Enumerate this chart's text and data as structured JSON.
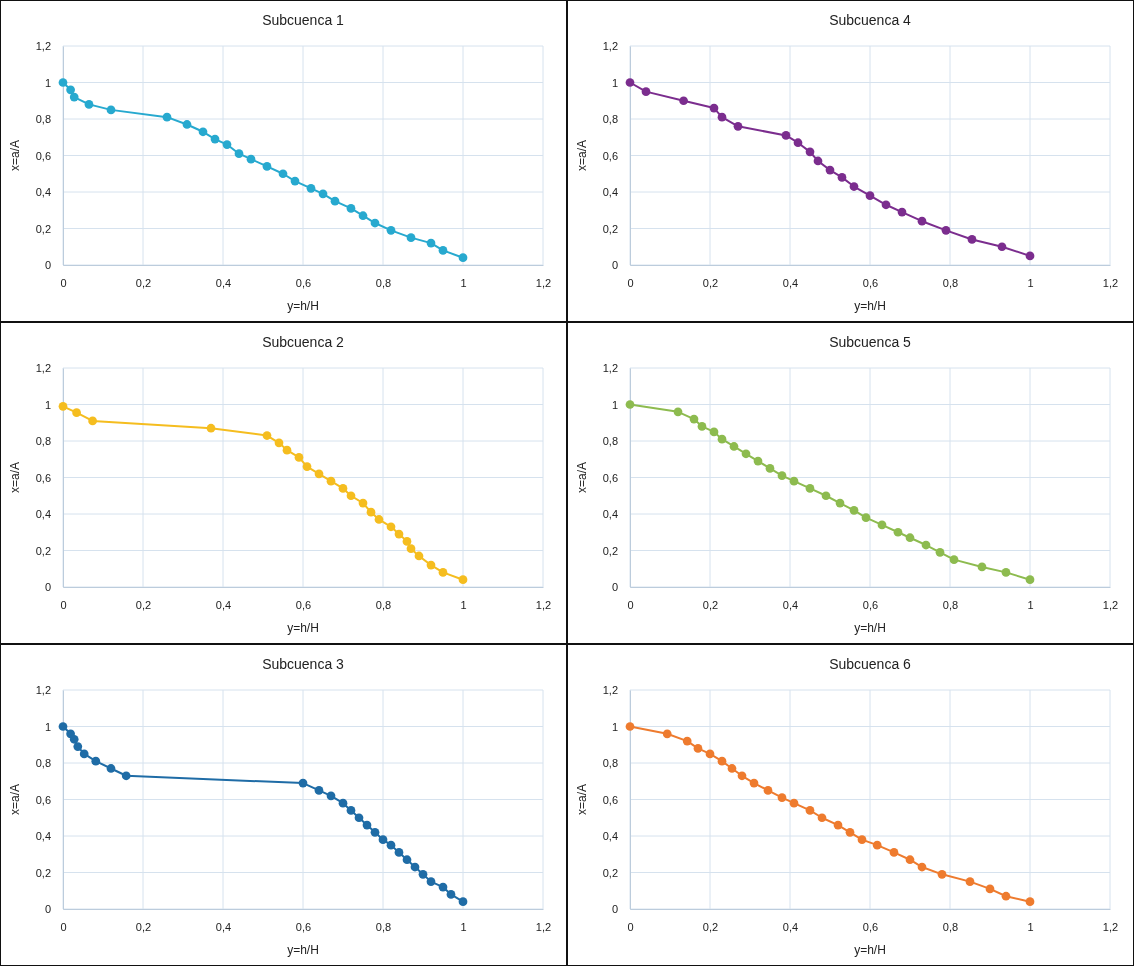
{
  "chart_data": [
    {
      "type": "line",
      "title": "Subcuenca 1",
      "xlabel": "y=h/H",
      "ylabel": "x=a/A",
      "color": "#27a9cf",
      "marker": "circle",
      "grid": true,
      "x": [
        0,
        0.019,
        0.028,
        0.065,
        0.12,
        0.26,
        0.31,
        0.35,
        0.38,
        0.41,
        0.44,
        0.47,
        0.51,
        0.55,
        0.58,
        0.62,
        0.65,
        0.68,
        0.72,
        0.75,
        0.78,
        0.82,
        0.87,
        0.92,
        0.95,
        1.0
      ],
      "values": [
        1.0,
        0.96,
        0.92,
        0.88,
        0.85,
        0.81,
        0.77,
        0.73,
        0.69,
        0.66,
        0.61,
        0.58,
        0.54,
        0.5,
        0.46,
        0.42,
        0.39,
        0.35,
        0.31,
        0.27,
        0.23,
        0.19,
        0.15,
        0.12,
        0.08,
        0.04
      ],
      "xlim": [
        0,
        1.2
      ],
      "ylim": [
        0,
        1.2
      ],
      "xticks": [
        {
          "value": 0,
          "label": "0"
        },
        {
          "value": 0.2,
          "label": "0,2"
        },
        {
          "value": 0.4,
          "label": "0,4"
        },
        {
          "value": 0.6,
          "label": "0,6"
        },
        {
          "value": 0.8,
          "label": "0,8"
        },
        {
          "value": 1,
          "label": "1"
        },
        {
          "value": 1.2,
          "label": "1,2"
        }
      ],
      "yticks": [
        {
          "value": 0,
          "label": "0"
        },
        {
          "value": 0.2,
          "label": "0,2"
        },
        {
          "value": 0.4,
          "label": "0,4"
        },
        {
          "value": 0.6,
          "label": "0,6"
        },
        {
          "value": 0.8,
          "label": "0,8"
        },
        {
          "value": 1,
          "label": "1"
        },
        {
          "value": 1.2,
          "label": "1,2"
        }
      ]
    },
    {
      "type": "line",
      "title": "Subcuenca 4",
      "xlabel": "y=h/H",
      "ylabel": "x=a/A",
      "color": "#7b2d8e",
      "marker": "circle",
      "grid": true,
      "x": [
        0,
        0.04,
        0.134,
        0.21,
        0.23,
        0.27,
        0.39,
        0.42,
        0.45,
        0.47,
        0.5,
        0.53,
        0.56,
        0.6,
        0.64,
        0.68,
        0.73,
        0.79,
        0.855,
        0.93,
        1.0
      ],
      "values": [
        1.0,
        0.95,
        0.9,
        0.86,
        0.81,
        0.76,
        0.71,
        0.67,
        0.62,
        0.57,
        0.52,
        0.48,
        0.43,
        0.38,
        0.33,
        0.29,
        0.24,
        0.19,
        0.14,
        0.1,
        0.05
      ],
      "xlim": [
        0,
        1.2
      ],
      "ylim": [
        0,
        1.2
      ],
      "xticks": [
        {
          "value": 0,
          "label": "0"
        },
        {
          "value": 0.2,
          "label": "0,2"
        },
        {
          "value": 0.4,
          "label": "0,4"
        },
        {
          "value": 0.6,
          "label": "0,6"
        },
        {
          "value": 0.8,
          "label": "0,8"
        },
        {
          "value": 1,
          "label": "1"
        },
        {
          "value": 1.2,
          "label": "1,2"
        }
      ],
      "yticks": [
        {
          "value": 0,
          "label": "0"
        },
        {
          "value": 0.2,
          "label": "0,2"
        },
        {
          "value": 0.4,
          "label": "0,4"
        },
        {
          "value": 0.6,
          "label": "0,6"
        },
        {
          "value": 0.8,
          "label": "0,8"
        },
        {
          "value": 1,
          "label": "1"
        },
        {
          "value": 1.2,
          "label": "1,2"
        }
      ]
    },
    {
      "type": "line",
      "title": "Subcuenca 2",
      "xlabel": "y=h/H",
      "ylabel": "x=a/A",
      "color": "#f5bd1f",
      "marker": "circle",
      "grid": true,
      "x": [
        0,
        0.034,
        0.074,
        0.37,
        0.51,
        0.54,
        0.56,
        0.59,
        0.61,
        0.64,
        0.67,
        0.7,
        0.72,
        0.75,
        0.77,
        0.79,
        0.82,
        0.84,
        0.86,
        0.87,
        0.89,
        0.92,
        0.95,
        1.0
      ],
      "values": [
        0.99,
        0.955,
        0.91,
        0.87,
        0.83,
        0.79,
        0.75,
        0.71,
        0.66,
        0.62,
        0.58,
        0.54,
        0.5,
        0.46,
        0.41,
        0.37,
        0.33,
        0.29,
        0.25,
        0.21,
        0.17,
        0.12,
        0.08,
        0.04
      ],
      "xlim": [
        0,
        1.2
      ],
      "ylim": [
        0,
        1.2
      ],
      "xticks": [
        {
          "value": 0,
          "label": "0"
        },
        {
          "value": 0.2,
          "label": "0,2"
        },
        {
          "value": 0.4,
          "label": "0,4"
        },
        {
          "value": 0.6,
          "label": "0,6"
        },
        {
          "value": 0.8,
          "label": "0,8"
        },
        {
          "value": 1,
          "label": "1"
        },
        {
          "value": 1.2,
          "label": "1,2"
        }
      ],
      "yticks": [
        {
          "value": 0,
          "label": "0"
        },
        {
          "value": 0.2,
          "label": "0,2"
        },
        {
          "value": 0.4,
          "label": "0,4"
        },
        {
          "value": 0.6,
          "label": "0,6"
        },
        {
          "value": 0.8,
          "label": "0,8"
        },
        {
          "value": 1,
          "label": "1"
        },
        {
          "value": 1.2,
          "label": "1,2"
        }
      ]
    },
    {
      "type": "line",
      "title": "Subcuenca 5",
      "xlabel": "y=h/H",
      "ylabel": "x=a/A",
      "color": "#8dbb4f",
      "marker": "circle",
      "grid": true,
      "x": [
        0,
        0.12,
        0.16,
        0.18,
        0.21,
        0.23,
        0.26,
        0.29,
        0.32,
        0.35,
        0.38,
        0.41,
        0.45,
        0.49,
        0.525,
        0.56,
        0.59,
        0.63,
        0.67,
        0.7,
        0.74,
        0.775,
        0.81,
        0.88,
        0.94,
        1.0
      ],
      "values": [
        1.0,
        0.96,
        0.92,
        0.88,
        0.85,
        0.81,
        0.77,
        0.73,
        0.69,
        0.65,
        0.61,
        0.58,
        0.54,
        0.5,
        0.46,
        0.42,
        0.38,
        0.34,
        0.3,
        0.27,
        0.23,
        0.19,
        0.15,
        0.11,
        0.08,
        0.04
      ],
      "xlim": [
        0,
        1.2
      ],
      "ylim": [
        0,
        1.2
      ],
      "xticks": [
        {
          "value": 0,
          "label": "0"
        },
        {
          "value": 0.2,
          "label": "0,2"
        },
        {
          "value": 0.4,
          "label": "0,4"
        },
        {
          "value": 0.6,
          "label": "0,6"
        },
        {
          "value": 0.8,
          "label": "0,8"
        },
        {
          "value": 1,
          "label": "1"
        },
        {
          "value": 1.2,
          "label": "1,2"
        }
      ],
      "yticks": [
        {
          "value": 0,
          "label": "0"
        },
        {
          "value": 0.2,
          "label": "0,2"
        },
        {
          "value": 0.4,
          "label": "0,4"
        },
        {
          "value": 0.6,
          "label": "0,6"
        },
        {
          "value": 0.8,
          "label": "0,8"
        },
        {
          "value": 1,
          "label": "1"
        },
        {
          "value": 1.2,
          "label": "1,2"
        }
      ]
    },
    {
      "type": "line",
      "title": "Subcuenca 3",
      "xlabel": "y=h/H",
      "ylabel": "x=a/A",
      "color": "#1f6ca6",
      "marker": "circle",
      "grid": true,
      "x": [
        0,
        0.019,
        0.028,
        0.037,
        0.053,
        0.082,
        0.12,
        0.158,
        0.6,
        0.64,
        0.67,
        0.7,
        0.72,
        0.74,
        0.76,
        0.78,
        0.8,
        0.82,
        0.84,
        0.86,
        0.88,
        0.9,
        0.92,
        0.95,
        0.97,
        1.0
      ],
      "values": [
        1.0,
        0.96,
        0.93,
        0.89,
        0.85,
        0.81,
        0.77,
        0.73,
        0.69,
        0.65,
        0.62,
        0.58,
        0.54,
        0.5,
        0.46,
        0.42,
        0.38,
        0.35,
        0.31,
        0.27,
        0.23,
        0.19,
        0.15,
        0.12,
        0.08,
        0.04
      ],
      "xlim": [
        0,
        1.2
      ],
      "ylim": [
        0,
        1.2
      ],
      "xticks": [
        {
          "value": 0,
          "label": "0"
        },
        {
          "value": 0.2,
          "label": "0,2"
        },
        {
          "value": 0.4,
          "label": "0,4"
        },
        {
          "value": 0.6,
          "label": "0,6"
        },
        {
          "value": 0.8,
          "label": "0,8"
        },
        {
          "value": 1,
          "label": "1"
        },
        {
          "value": 1.2,
          "label": "1,2"
        }
      ],
      "yticks": [
        {
          "value": 0,
          "label": "0"
        },
        {
          "value": 0.2,
          "label": "0,2"
        },
        {
          "value": 0.4,
          "label": "0,4"
        },
        {
          "value": 0.6,
          "label": "0,6"
        },
        {
          "value": 0.8,
          "label": "0,8"
        },
        {
          "value": 1,
          "label": "1"
        },
        {
          "value": 1.2,
          "label": "1,2"
        }
      ]
    },
    {
      "type": "line",
      "title": "Subcuenca 6",
      "xlabel": "y=h/H",
      "ylabel": "x=a/A",
      "color": "#ee7b2e",
      "marker": "circle",
      "grid": true,
      "x": [
        0,
        0.093,
        0.143,
        0.17,
        0.2,
        0.23,
        0.255,
        0.28,
        0.31,
        0.345,
        0.38,
        0.41,
        0.45,
        0.48,
        0.52,
        0.55,
        0.58,
        0.618,
        0.66,
        0.7,
        0.73,
        0.78,
        0.85,
        0.9,
        0.94,
        1.0
      ],
      "values": [
        1.0,
        0.96,
        0.92,
        0.88,
        0.85,
        0.81,
        0.77,
        0.73,
        0.69,
        0.65,
        0.61,
        0.58,
        0.54,
        0.5,
        0.46,
        0.42,
        0.38,
        0.35,
        0.31,
        0.27,
        0.23,
        0.19,
        0.15,
        0.11,
        0.07,
        0.04
      ],
      "xlim": [
        0,
        1.2
      ],
      "ylim": [
        0,
        1.2
      ],
      "xticks": [
        {
          "value": 0,
          "label": "0"
        },
        {
          "value": 0.2,
          "label": "0,2"
        },
        {
          "value": 0.4,
          "label": "0,4"
        },
        {
          "value": 0.6,
          "label": "0,6"
        },
        {
          "value": 0.8,
          "label": "0,8"
        },
        {
          "value": 1,
          "label": "1"
        },
        {
          "value": 1.2,
          "label": "1,2"
        }
      ],
      "yticks": [
        {
          "value": 0,
          "label": "0"
        },
        {
          "value": 0.2,
          "label": "0,2"
        },
        {
          "value": 0.4,
          "label": "0,4"
        },
        {
          "value": 0.6,
          "label": "0,6"
        },
        {
          "value": 0.8,
          "label": "0,8"
        },
        {
          "value": 1,
          "label": "1"
        },
        {
          "value": 1.2,
          "label": "1,2"
        }
      ]
    }
  ]
}
